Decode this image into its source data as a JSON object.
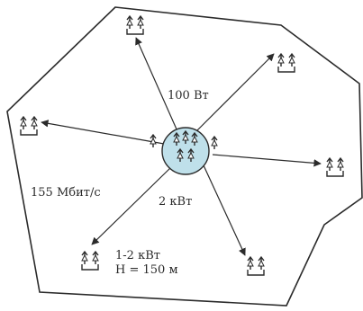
{
  "labels": {
    "center_top": "100 Вт",
    "center_bottom": "2 кВт",
    "link_rate": "155 Мбит/с",
    "remote_power": "1-2 кВт",
    "height": "H = 150 м"
  },
  "colors": {
    "ink": "#2b2b2b",
    "hub_fill": "#bfe0ea"
  }
}
